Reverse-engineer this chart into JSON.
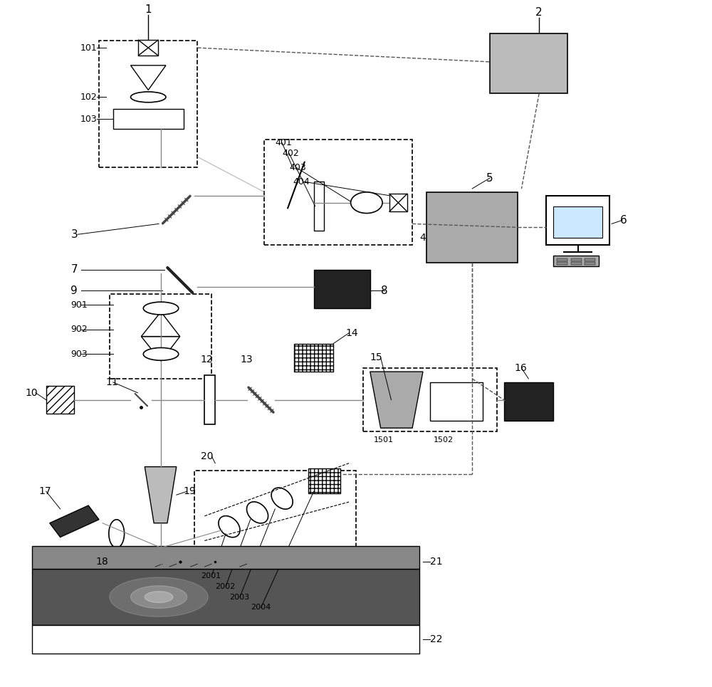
{
  "bg_color": "#ffffff",
  "line_color": "#000000",
  "gray_fill": "#aaaaaa",
  "light_gray": "#cccccc",
  "dark_gray": "#333333",
  "figsize": [
    10.0,
    9.65
  ],
  "dpi": 100
}
